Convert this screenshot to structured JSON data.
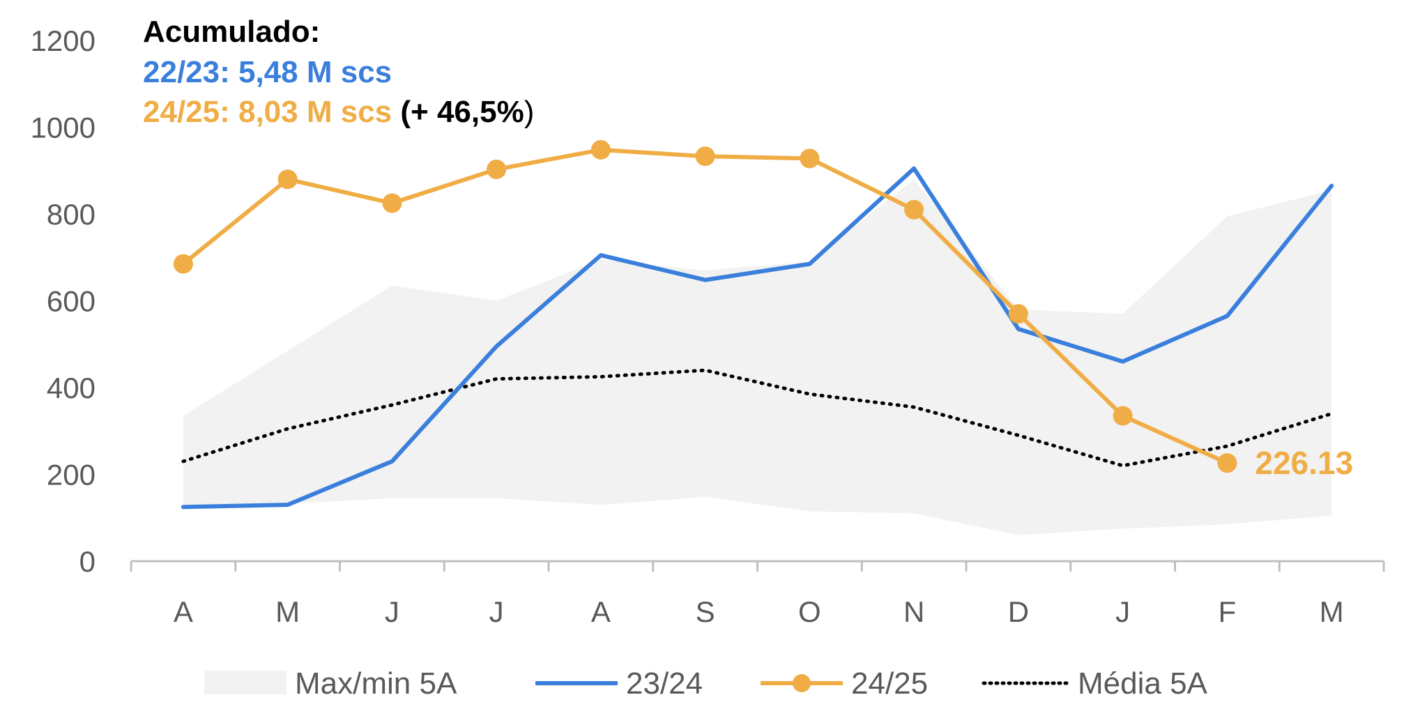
{
  "chart_data": {
    "type": "line",
    "categories": [
      "A",
      "M",
      "J",
      "J",
      "A",
      "S",
      "O",
      "N",
      "D",
      "J",
      "F",
      "M"
    ],
    "ylim": [
      0,
      1200
    ],
    "yticks": [
      "0",
      "200",
      "400",
      "600",
      "800",
      "1000",
      "1200"
    ],
    "grid": false,
    "legend_position": "bottom",
    "band": {
      "name": "Max/min 5A",
      "max": [
        335,
        485,
        635,
        600,
        695,
        670,
        690,
        880,
        580,
        570,
        795,
        855
      ],
      "min": [
        130,
        132,
        145,
        145,
        130,
        148,
        115,
        110,
        60,
        75,
        85,
        105
      ]
    },
    "series": [
      {
        "name": "23/24",
        "values": [
          125,
          130,
          230,
          495,
          705,
          648,
          685,
          905,
          535,
          460,
          565,
          865
        ]
      },
      {
        "name": "24/25",
        "values": [
          685,
          880,
          825,
          903,
          948,
          933,
          928,
          810,
          570,
          335,
          226.13,
          null
        ],
        "last_label": "226.13"
      },
      {
        "name": "Média 5A",
        "values": [
          230,
          305,
          360,
          420,
          425,
          440,
          385,
          355,
          290,
          220,
          265,
          340
        ]
      }
    ],
    "annotation": {
      "heading": "Acumulado:",
      "line1": "22/23: 5,48 M scs",
      "line2": "24/25: 8,03 M scs",
      "line2_extra_bold": " (+ 46,5%",
      "line2_extra_close": ")"
    },
    "colors": {
      "band": "#f2f2f2",
      "blue": "#3a7fdc",
      "orange": "#f0ad45",
      "dotted": "#000000",
      "axis": "#bfbfbf",
      "text": "#595959"
    }
  }
}
